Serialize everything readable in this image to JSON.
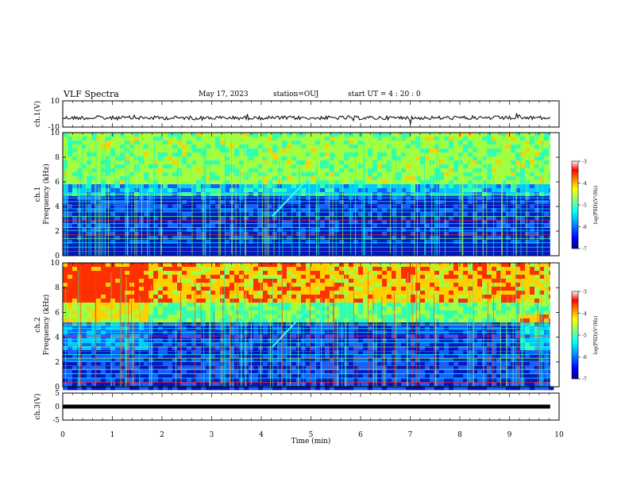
{
  "header": {
    "title": "VLF Spectra",
    "date": "May 17, 2023",
    "station": "station=OUJ",
    "start": "start UT =  4 : 20 : 0"
  },
  "colorbar": {
    "ticks": [
      "-3",
      "-4",
      "-5",
      "-6",
      "-7"
    ],
    "label": "log(PSD)(V²/Hz)",
    "colors": [
      "#000080",
      "#0000ff",
      "#00a0ff",
      "#00ffff",
      "#80ff80",
      "#ffff00",
      "#ff8000",
      "#ff0000",
      "#ffffff"
    ]
  },
  "chart_data": [
    {
      "type": "line",
      "name": "ch1 voltage",
      "ylabel": "ch.1(V)",
      "ylim": [
        -10,
        10
      ],
      "yticks": [
        "10",
        "-10"
      ],
      "xlim": [
        0,
        10
      ],
      "level": -3
    },
    {
      "type": "heatmap",
      "name": "ch1 spectrogram",
      "ylabel_lines": [
        "ch.1",
        "Frequency (kHz)"
      ],
      "ylim": [
        0,
        10
      ],
      "yticks": [
        "0",
        "2",
        "4",
        "6",
        "8",
        "10"
      ],
      "xlim": [
        0,
        10
      ],
      "zlim": [
        -7,
        -3
      ]
    },
    {
      "type": "heatmap",
      "name": "ch2 spectrogram",
      "ylabel_lines": [
        "ch.2",
        "Frequency (kHz)"
      ],
      "ylim": [
        0,
        10
      ],
      "yticks": [
        "0",
        "2",
        "4",
        "6",
        "8",
        "10"
      ],
      "xlim": [
        0,
        10
      ],
      "zlim": [
        -7,
        -3
      ]
    },
    {
      "type": "line",
      "name": "ch3 voltage",
      "ylabel": "ch.3(V)",
      "ylim": [
        -5,
        5
      ],
      "yticks": [
        "5",
        "0",
        "-5"
      ],
      "xlim": [
        0,
        10
      ],
      "level": 0
    }
  ],
  "xaxis": {
    "label": "Time (min)",
    "ticks": [
      "0",
      "1",
      "2",
      "3",
      "4",
      "5",
      "6",
      "7",
      "8",
      "9",
      "10"
    ]
  }
}
